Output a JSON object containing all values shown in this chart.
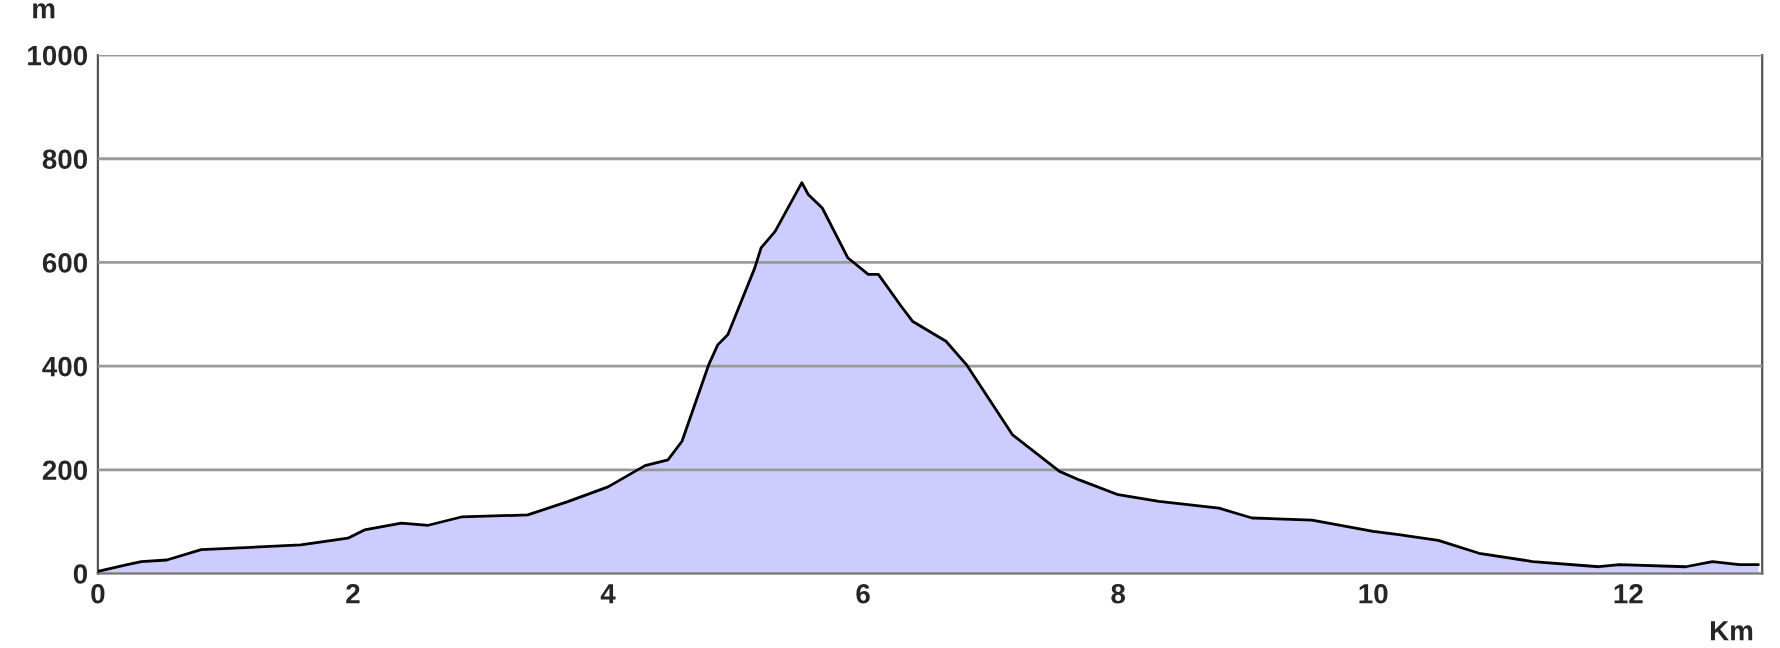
{
  "chart_data": {
    "type": "area",
    "xlabel": "Km",
    "ylabel": "m",
    "x": [
      0,
      0.23,
      0.34,
      0.54,
      0.81,
      1.07,
      1.59,
      1.96,
      2.09,
      2.38,
      2.59,
      2.85,
      3.37,
      3.69,
      4.0,
      4.29,
      4.47,
      4.58,
      4.79,
      4.86,
      4.94,
      5.15,
      5.2,
      5.31,
      5.52,
      5.57,
      5.68,
      5.88,
      6.04,
      6.12,
      6.3,
      6.39,
      6.65,
      6.81,
      7.17,
      7.54,
      7.7,
      8.0,
      8.32,
      8.79,
      9.05,
      9.52,
      10.0,
      10.2,
      10.51,
      10.83,
      11.25,
      11.77,
      11.93,
      12.45,
      12.66,
      12.87,
      13.02
    ],
    "series": [
      {
        "color": "#ccccff",
        "values": [
          4,
          17,
          23,
          26,
          46,
          49,
          55,
          68,
          84,
          97,
          93,
          109,
          113,
          139,
          167,
          208,
          219,
          255,
          403,
          441,
          461,
          589,
          628,
          660,
          754,
          731,
          705,
          609,
          577,
          577,
          515,
          486,
          448,
          403,
          268,
          197,
          180,
          152,
          139,
          126,
          107,
          103,
          81,
          75,
          64,
          39,
          23,
          13,
          17,
          13,
          23,
          17,
          17
        ]
      }
    ],
    "xlim": [
      0,
      13.05
    ],
    "ylim": [
      0,
      1000
    ],
    "xticks": [
      0,
      2,
      4,
      6,
      8,
      10,
      12
    ],
    "yticks": [
      0,
      200,
      400,
      600,
      800,
      1000
    ],
    "grid": "y",
    "legend": false
  }
}
